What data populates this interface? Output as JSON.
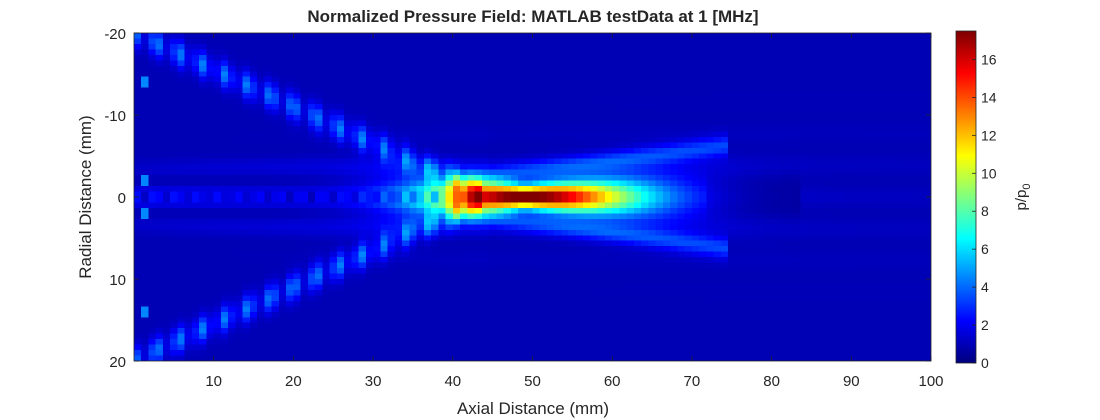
{
  "chart_data": {
    "type": "heatmap",
    "title": "Normalized Pressure Field: MATLAB testData at 1 [MHz]",
    "xlabel": "Axial Distance (mm)",
    "ylabel": "Radial Distance (mm)",
    "colorbar_label": "p/p",
    "colorbar_label_sub": "0",
    "xlim": [
      0,
      100
    ],
    "ylim": [
      -20,
      20
    ],
    "y_reversed": true,
    "x_ticks": [
      10,
      20,
      30,
      40,
      50,
      60,
      70,
      80,
      90,
      100
    ],
    "x_tick_labels": [
      "10",
      "20",
      "30",
      "40",
      "50",
      "60",
      "70",
      "80",
      "90",
      "100"
    ],
    "y_ticks": [
      -20,
      -10,
      0,
      10,
      20
    ],
    "y_tick_labels": [
      "-20",
      "-10",
      "0",
      "10",
      "20"
    ],
    "clim": [
      0,
      17.5
    ],
    "colorbar_ticks": [
      0,
      2,
      4,
      6,
      8,
      10,
      12,
      14,
      16
    ],
    "colorbar_tick_labels": [
      "0",
      "2",
      "4",
      "6",
      "8",
      "10",
      "12",
      "14",
      "16"
    ],
    "colormap": "jet",
    "focal_peak": {
      "x": 49,
      "y": 0,
      "value": 17.3
    },
    "grid": false
  }
}
